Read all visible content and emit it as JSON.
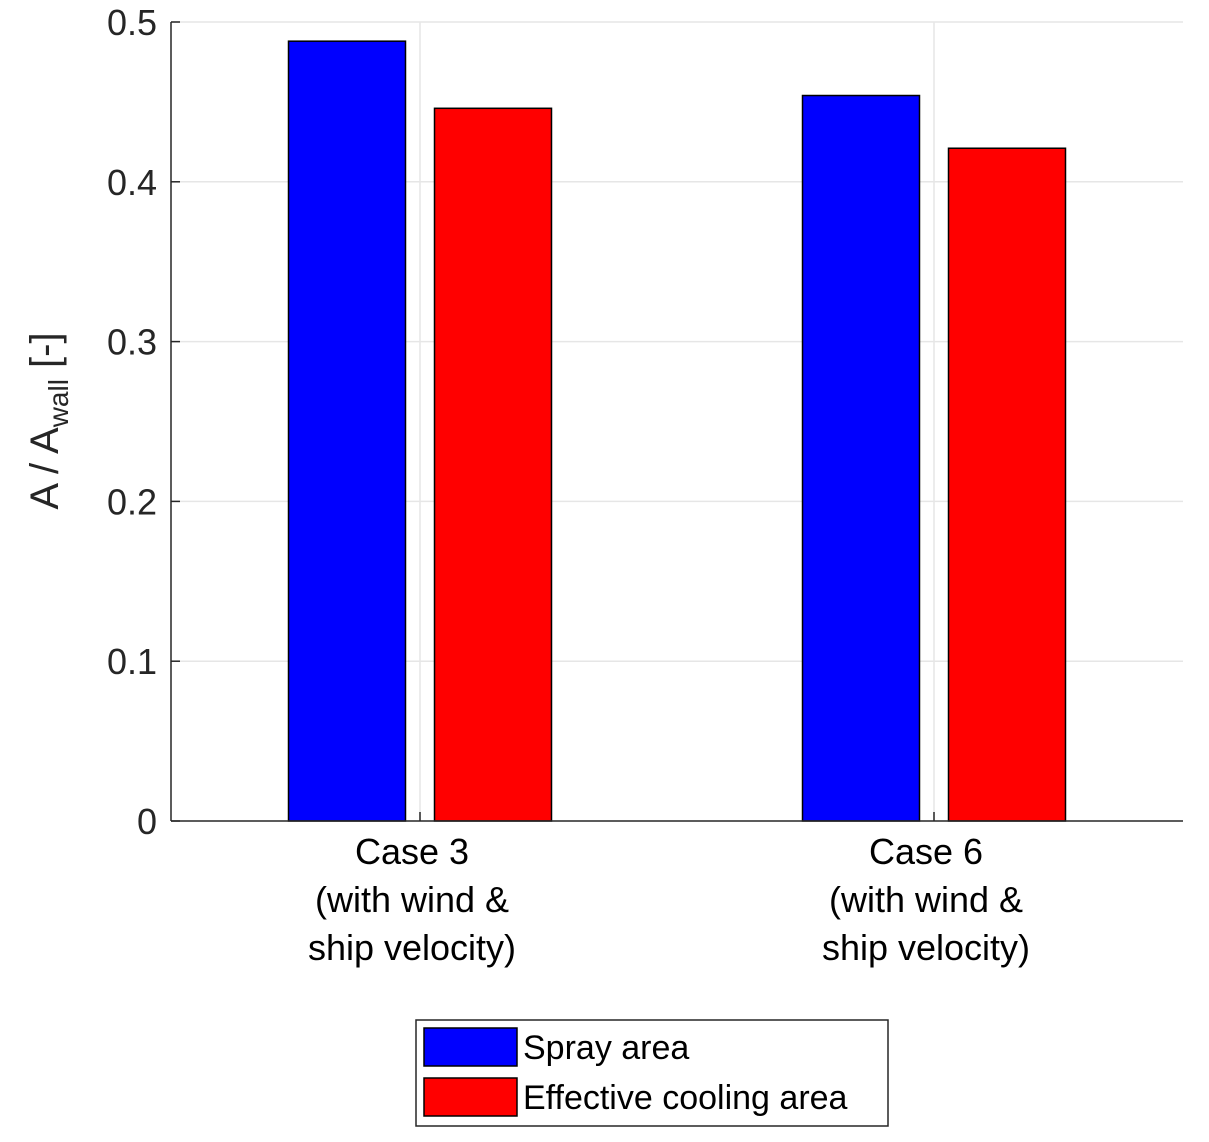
{
  "chart_data": {
    "type": "bar",
    "title": "",
    "xlabel": "",
    "ylabel": {
      "main": "A / A",
      "subscript": "wall",
      "suffix": " [-]"
    },
    "ylim": [
      0,
      0.5
    ],
    "yticks": [
      "0",
      "0.1",
      "0.2",
      "0.3",
      "0.4",
      "0.5"
    ],
    "grid": true,
    "categories": [
      {
        "lines": [
          "Case 3",
          "(with wind &",
          "ship velocity)"
        ]
      },
      {
        "lines": [
          "Case 6",
          "(with wind &",
          "ship velocity)"
        ]
      }
    ],
    "series": [
      {
        "name": "Spray area",
        "color": "#0000ff",
        "values": [
          0.488,
          0.454
        ]
      },
      {
        "name": "Effective cooling area",
        "color": "#ff0000",
        "values": [
          0.446,
          0.421
        ]
      }
    ],
    "legend_position": "bottom-center"
  }
}
